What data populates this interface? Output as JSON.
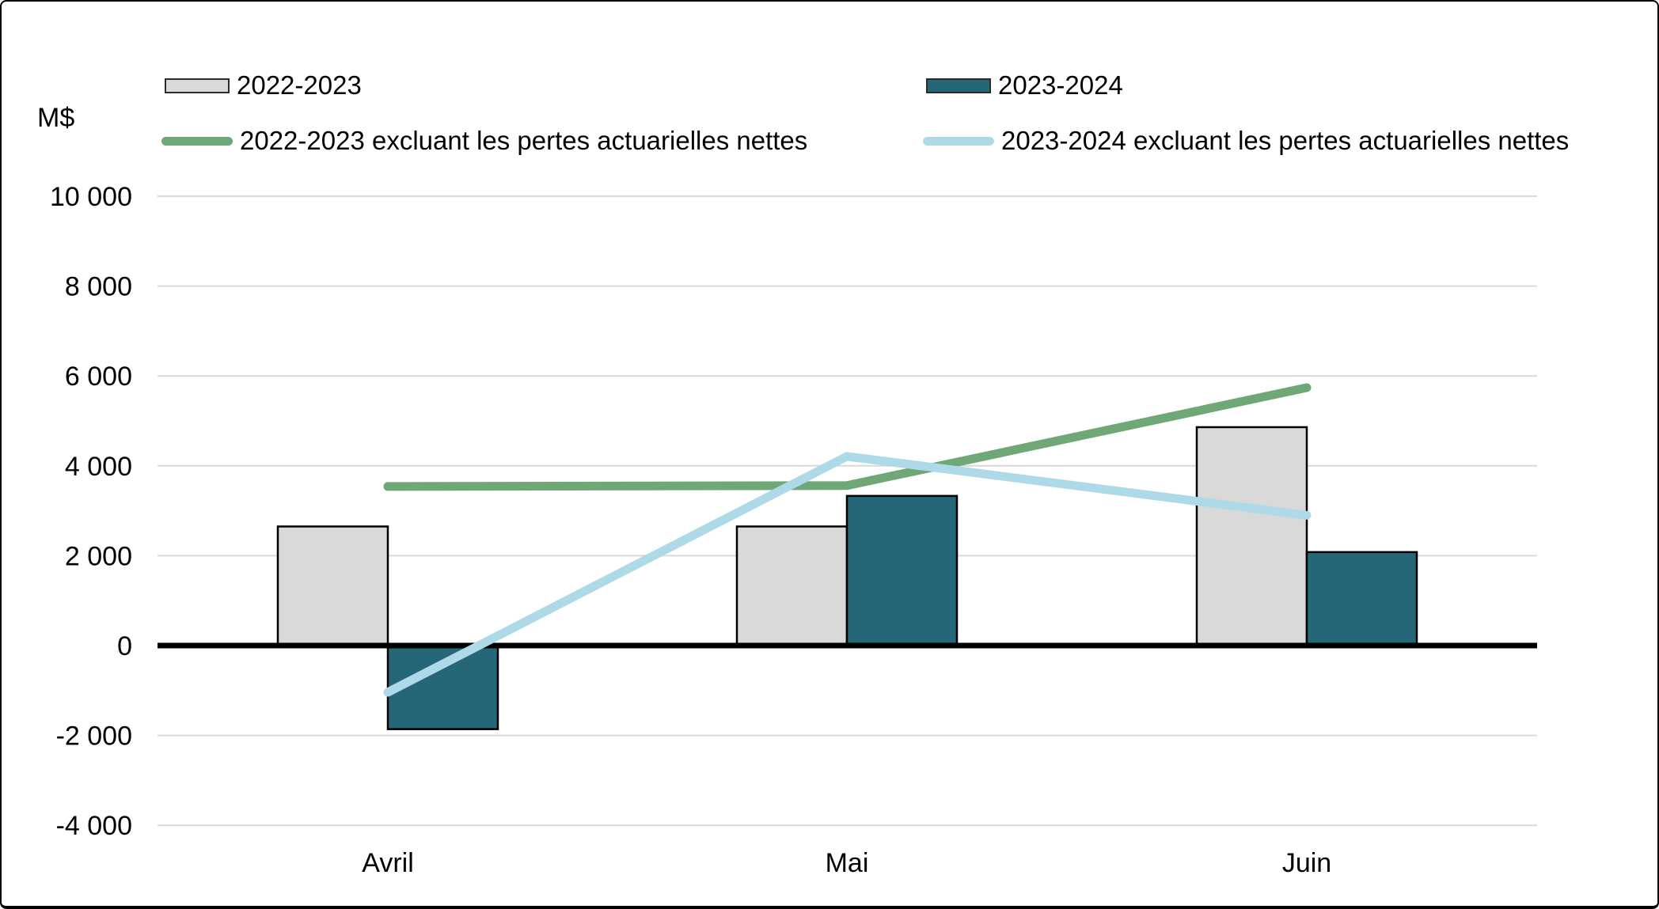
{
  "axis": {
    "unit_label": "M$"
  },
  "chart_data": {
    "type": "bar",
    "subtype": "grouped-bars-with-overlay-lines",
    "categories": [
      "Avril",
      "Mai",
      "Juin"
    ],
    "unit_label": "M$",
    "y_axis": {
      "min": -4000,
      "max": 10000,
      "tick_step": 2000,
      "tick_labels": [
        "10 000",
        "8 000",
        "6 000",
        "4 000",
        "2 000",
        "0",
        "-2 000",
        "-4 000"
      ]
    },
    "bar_series": [
      {
        "name": "2022-2023",
        "values": [
          2650,
          2650,
          4860
        ],
        "fill": "#d9d9d9",
        "stroke": "#000000"
      },
      {
        "name": "2023-2024",
        "values": [
          -1860,
          3330,
          2080
        ],
        "fill": "#266679",
        "stroke": "#000000"
      }
    ],
    "line_series": [
      {
        "name": "2022-2023 excluant les pertes actuarielles nettes",
        "values": [
          3540,
          3560,
          5740
        ],
        "color": "#6fa776"
      },
      {
        "name": "2023-2024 excluant les pertes actuarielles nettes",
        "values": [
          -1040,
          4210,
          2900
        ],
        "color": "#aedae8"
      }
    ],
    "grid": {
      "show": true,
      "color": "#d9d9d9",
      "zero_line_color": "#000000"
    },
    "legend_position": "top"
  }
}
